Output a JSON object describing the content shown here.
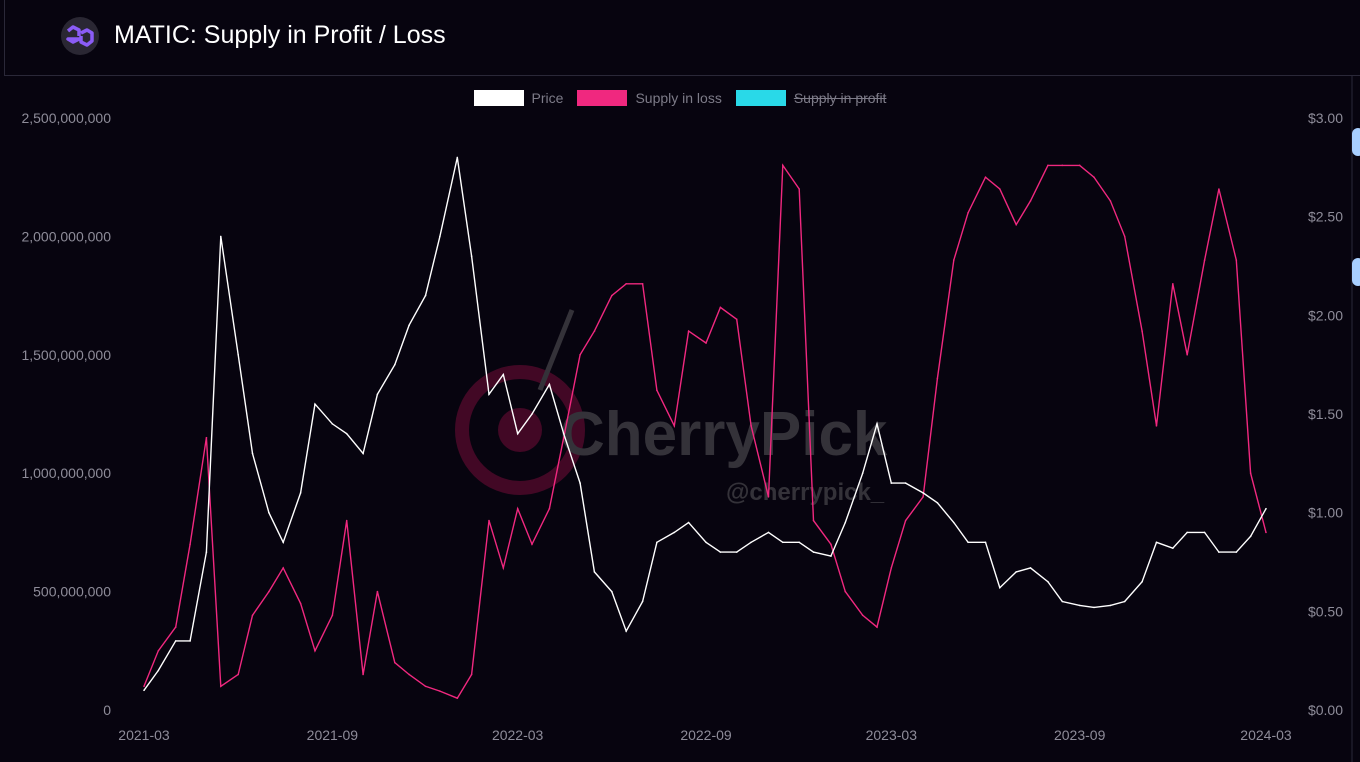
{
  "header": {
    "title": "MATIC: Supply in Profit / Loss",
    "logo_icon": "polygon-logo-icon"
  },
  "watermark": {
    "brand": "CherryPick",
    "handle": "@cherrypick_"
  },
  "colors": {
    "price": "#ffffff",
    "supply_in_loss": "#f0287f",
    "supply_in_profit": "#29d9e8",
    "background": "#07040f"
  },
  "chart_data": {
    "type": "line",
    "title": "MATIC: Supply in Profit / Loss",
    "legend_position": "top-center",
    "grid": false,
    "legend": [
      {
        "name": "Price",
        "color": "#ffffff",
        "hidden": false
      },
      {
        "name": "Supply in loss",
        "color": "#f0287f",
        "hidden": false
      },
      {
        "name": "Supply in profit",
        "color": "#29d9e8",
        "hidden": true
      }
    ],
    "x_ticks": [
      "2021-03",
      "2021-09",
      "2022-03",
      "2022-09",
      "2023-03",
      "2023-09",
      "2024-03"
    ],
    "y_left_ticks": [
      "0",
      "500,000,000",
      "1,000,000,000",
      "1,500,000,000",
      "2,000,000,000",
      "2,500,000,000"
    ],
    "y_left_range": [
      0,
      2500000000
    ],
    "y_right_ticks": [
      "$0.00",
      "$0.50",
      "$1.00",
      "$1.50",
      "$2.00",
      "$2.50",
      "$3.00"
    ],
    "y_right_range": [
      0,
      3
    ],
    "x": [
      "2021-03-01",
      "2021-03-15",
      "2021-04-01",
      "2021-04-15",
      "2021-05-01",
      "2021-05-15",
      "2021-06-01",
      "2021-06-15",
      "2021-07-01",
      "2021-07-15",
      "2021-08-01",
      "2021-08-15",
      "2021-09-01",
      "2021-09-15",
      "2021-10-01",
      "2021-10-15",
      "2021-11-01",
      "2021-11-15",
      "2021-12-01",
      "2021-12-15",
      "2022-01-01",
      "2022-01-15",
      "2022-02-01",
      "2022-02-15",
      "2022-03-01",
      "2022-03-15",
      "2022-04-01",
      "2022-04-15",
      "2022-05-01",
      "2022-05-15",
      "2022-06-01",
      "2022-06-15",
      "2022-07-01",
      "2022-07-15",
      "2022-08-01",
      "2022-08-15",
      "2022-09-01",
      "2022-09-15",
      "2022-10-01",
      "2022-10-15",
      "2022-11-01",
      "2022-11-15",
      "2022-12-01",
      "2022-12-15",
      "2023-01-01",
      "2023-01-15",
      "2023-02-01",
      "2023-02-15",
      "2023-03-01",
      "2023-03-15",
      "2023-04-01",
      "2023-04-15",
      "2023-05-01",
      "2023-05-15",
      "2023-06-01",
      "2023-06-15",
      "2023-07-01",
      "2023-07-15",
      "2023-08-01",
      "2023-08-15",
      "2023-09-01",
      "2023-09-15",
      "2023-10-01",
      "2023-10-15",
      "2023-11-01",
      "2023-11-15",
      "2023-12-01",
      "2023-12-15",
      "2024-01-01",
      "2024-01-15",
      "2024-02-01",
      "2024-02-15",
      "2024-03-01"
    ],
    "series": [
      {
        "name": "Price",
        "axis": "right",
        "values": [
          0.1,
          0.2,
          0.35,
          0.35,
          0.8,
          2.4,
          1.8,
          1.3,
          1.0,
          0.85,
          1.1,
          1.55,
          1.45,
          1.4,
          1.3,
          1.6,
          1.75,
          1.95,
          2.1,
          2.4,
          2.8,
          2.3,
          1.6,
          1.7,
          1.4,
          1.5,
          1.65,
          1.4,
          1.15,
          0.7,
          0.6,
          0.4,
          0.55,
          0.85,
          0.9,
          0.95,
          0.85,
          0.8,
          0.8,
          0.85,
          0.9,
          0.85,
          0.85,
          0.8,
          0.78,
          0.95,
          1.2,
          1.45,
          1.15,
          1.15,
          1.1,
          1.05,
          0.95,
          0.85,
          0.85,
          0.62,
          0.7,
          0.72,
          0.65,
          0.55,
          0.53,
          0.52,
          0.53,
          0.55,
          0.65,
          0.85,
          0.82,
          0.9,
          0.9,
          0.8,
          0.8,
          0.88,
          1.02
        ]
      },
      {
        "name": "Supply in loss",
        "axis": "left",
        "values": [
          100000000,
          250000000,
          350000000,
          700000000,
          1150000000,
          100000000,
          150000000,
          400000000,
          500000000,
          600000000,
          450000000,
          250000000,
          400000000,
          800000000,
          150000000,
          500000000,
          200000000,
          150000000,
          100000000,
          80000000,
          50000000,
          150000000,
          800000000,
          600000000,
          850000000,
          700000000,
          850000000,
          1150000000,
          1500000000,
          1600000000,
          1750000000,
          1800000000,
          1800000000,
          1350000000,
          1200000000,
          1600000000,
          1550000000,
          1700000000,
          1650000000,
          1200000000,
          900000000,
          2300000000,
          2200000000,
          800000000,
          700000000,
          500000000,
          400000000,
          350000000,
          600000000,
          800000000,
          900000000,
          1400000000,
          1900000000,
          2100000000,
          2250000000,
          2200000000,
          2050000000,
          2150000000,
          2300000000,
          2300000000,
          2300000000,
          2250000000,
          2150000000,
          2000000000,
          1600000000,
          1200000000,
          1800000000,
          1500000000,
          1900000000,
          2200000000,
          1900000000,
          1000000000,
          750000000
        ]
      }
    ]
  }
}
